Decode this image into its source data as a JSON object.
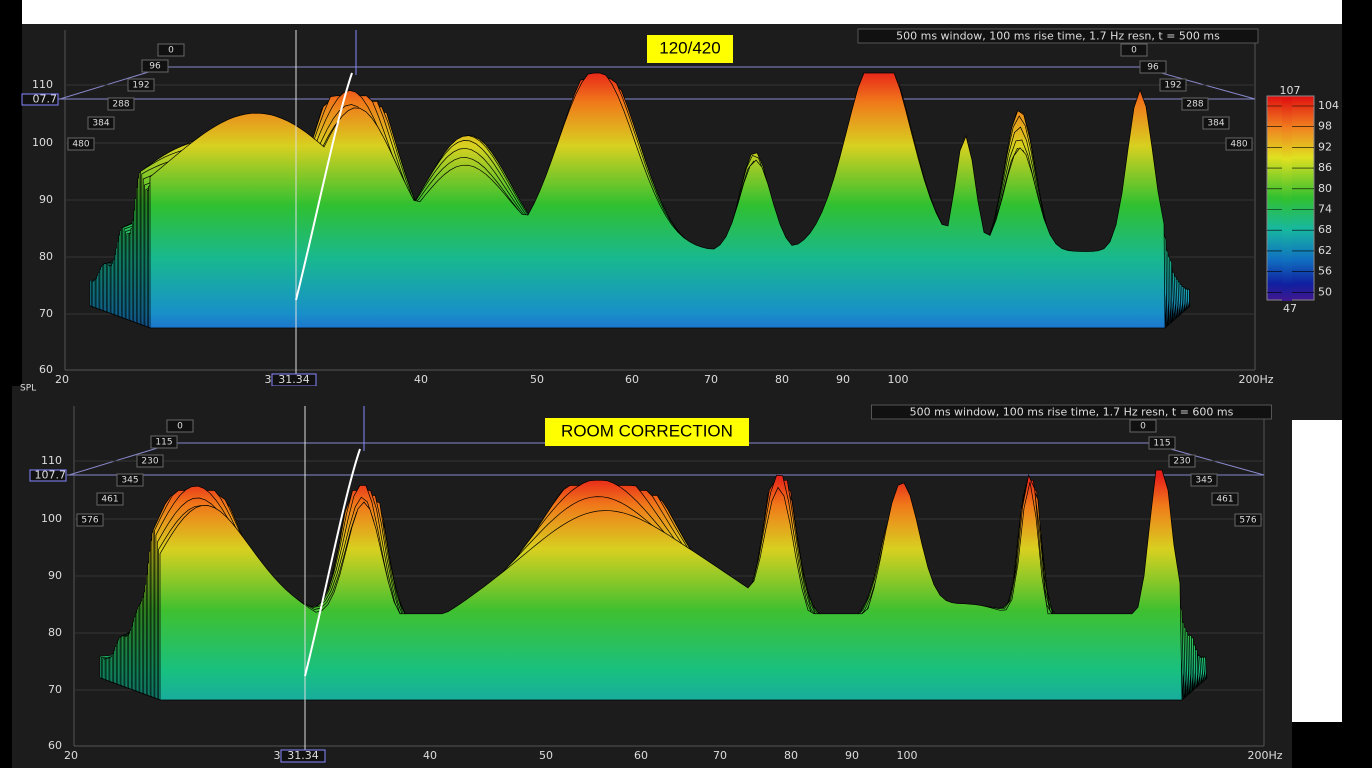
{
  "panels": [
    {
      "label": "120/420",
      "info": "500 ms window, 100 ms rise time,  1.7 Hz resn, t = 500 ms",
      "y_ticks": [
        "110",
        "100",
        "90",
        "80",
        "70",
        "60"
      ],
      "cursor_y": "07.7",
      "cursor_x": "31.34",
      "x_ticks": [
        "20",
        "3",
        "40",
        "50",
        "60",
        "70",
        "80",
        "90",
        "100",
        "200Hz"
      ],
      "time_left": [
        "0",
        "96",
        "192",
        "288",
        "384",
        "480"
      ],
      "time_right": [
        "0",
        "96",
        "192",
        "288",
        "384",
        "480"
      ],
      "colorbar": {
        "max": "107",
        "ticks": [
          "104",
          "98",
          "92",
          "86",
          "80",
          "74",
          "68",
          "62",
          "56",
          "50"
        ],
        "min": "47"
      }
    },
    {
      "axis_title": "SPL",
      "label": "ROOM CORRECTION",
      "info": "500 ms window, 100 ms rise time,  1.7 Hz resn, t = 600 ms",
      "y_ticks": [
        "110",
        "100",
        "90",
        "80",
        "70",
        "60"
      ],
      "cursor_y": "107.7",
      "cursor_x": "31.34",
      "x_ticks": [
        "20",
        "3",
        "40",
        "50",
        "60",
        "70",
        "80",
        "90",
        "100",
        "200Hz"
      ],
      "time_left": [
        "0",
        "115",
        "230",
        "345",
        "461",
        "576"
      ],
      "time_right": [
        "0",
        "115",
        "230",
        "345",
        "461",
        "576"
      ]
    }
  ]
}
